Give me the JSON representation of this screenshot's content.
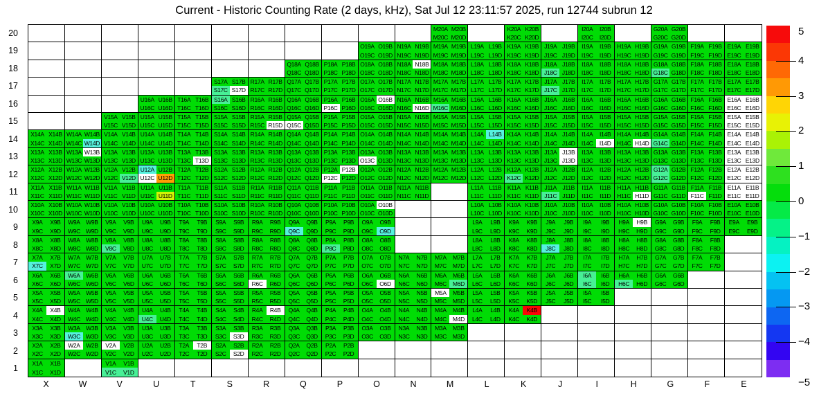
{
  "title": "Current - Historic Counting Rate (2 days, kHz), Sat Jul 12 23:11:57 2025, run 12744 subrun 12",
  "palette": {
    "green": "#00dc05",
    "mint": "#47f096",
    "cyan": "#55f2de",
    "yellow": "#d3f205",
    "orange": "#ff9e05",
    "red": "#fa0505",
    "white": "#ffffff"
  },
  "colorbar": {
    "tick_labels": [
      "5",
      "4",
      "3",
      "2",
      "1",
      "0",
      "−1",
      "−2",
      "−3",
      "−4",
      "−5"
    ],
    "tick_values": [
      5,
      4,
      3,
      2,
      1,
      0,
      -1,
      -2,
      -3,
      -4,
      -5
    ],
    "band_colors": [
      "#f70b0b",
      "#fb3705",
      "#ff6905",
      "#ff9905",
      "#ffd505",
      "#e8f205",
      "#aaf205",
      "#6fe93b",
      "#2ee01f",
      "#05dd0c",
      "#05ea47",
      "#05f287",
      "#05f2c2",
      "#0cf2f2",
      "#05c2f2",
      "#0598f2",
      "#0d66f2",
      "#1437f2",
      "#3305f2",
      "#7d2df2"
    ]
  },
  "chart_data": {
    "type": "heatmap",
    "title": "Current - Historic Counting Rate (2 days, kHz), Sat Jul 12 23:11:57 2025, run 12744 subrun 12",
    "x_categories": "XWVUTSRQPONMLKJIHGFE",
    "y_categories": [
      20,
      19,
      18,
      17,
      16,
      15,
      14,
      13,
      12,
      11,
      10,
      9,
      8,
      7,
      6,
      5,
      4,
      3,
      2,
      1
    ],
    "zlim": [
      -5,
      5
    ],
    "legend_position": "right-colorbar",
    "grid": "on",
    "cell_naming": "Each populated module cell contains four bins labeled <Col><Row>A, B (top) and C, D (bottom)",
    "rows": [
      {
        "row": 20,
        "cols": "MKIG"
      },
      {
        "row": 19,
        "cols": "ONMLKJIHGFE"
      },
      {
        "row": 18,
        "cols": "QPONMLKJIHGFE"
      },
      {
        "row": 17,
        "cols": "SRQPONMLKJIHGFE"
      },
      {
        "row": 16,
        "cols": "UTSRQPONMLKJIHGFE"
      },
      {
        "row": 15,
        "cols": "VUTSRQPONMLKJIHGFE"
      },
      {
        "row": 14,
        "cols": "XWVUTSRQPONMLKJIHGFE"
      },
      {
        "row": 13,
        "cols": "XWVUTSRQPONMLKJIHGFE"
      },
      {
        "row": 12,
        "cols": "XWVUTSRQPONMLKJIHGFE"
      },
      {
        "row": 11,
        "cols": "XWVUTSRQPONLKJIHGFE"
      },
      {
        "row": 10,
        "cols": "XWVUTSRQPOLKJIHGFE"
      },
      {
        "row": 9,
        "cols": "XWVUTSRQPOLKJIHGFE"
      },
      {
        "row": 8,
        "cols": "XWVUTSRQPOLKJIHGF"
      },
      {
        "row": 7,
        "cols": "XWVUTSRQPONMLKJIHGF"
      },
      {
        "row": 6,
        "cols": "XWVUTSRQPONMLKJIHG"
      },
      {
        "row": 5,
        "cols": "XWVUTSRQPONMLKJI"
      },
      {
        "row": 4,
        "cols": "XWVUTSRQPONMLK"
      },
      {
        "row": 3,
        "cols": "XWVUTSRQPONM"
      },
      {
        "row": 2,
        "cols": "XWVUTSRQP"
      },
      {
        "row": 1,
        "cols": "XV"
      }
    ],
    "default_cell_color": "green",
    "approx_value_by_color": {
      "green": 0.5,
      "mint": -0.7,
      "cyan": -1.8,
      "yellow": 2.2,
      "orange": 3.5,
      "red": 5,
      "white": 0
    },
    "cell_color_overrides": {
      "N18B": "white",
      "J18C": "mint",
      "G18C": "mint",
      "S17C": "mint",
      "S17D": "white",
      "J17C": "mint",
      "S16A": "mint",
      "P16C": "white",
      "O16B": "white",
      "N16D": "white",
      "M16C": "mint",
      "E16A": "white",
      "E16B": "white",
      "E16C": "white",
      "E16D": "white",
      "R15D": "white",
      "Q15C": "white",
      "E15A": "white",
      "E15B": "white",
      "E15C": "white",
      "E15D": "white",
      "W14D": "cyan",
      "L14B": "cyan",
      "I14D": "white",
      "H14D": "white",
      "G14C": "mint",
      "E14A": "white",
      "E14B": "white",
      "E14C": "white",
      "E14D": "white",
      "W13B": "white",
      "T13D": "white",
      "O13C": "white",
      "J13B": "white",
      "J13D": "white",
      "E13A": "white",
      "E13B": "white",
      "E13C": "white",
      "E13D": "white",
      "U12A": "cyan",
      "U12C": "white",
      "U12D": "orange",
      "V12D": "mint",
      "P12B": "white",
      "P12C": "white",
      "K12C": "mint",
      "G12A": "mint",
      "G12C": "mint",
      "E12A": "white",
      "E12B": "white",
      "E12C": "white",
      "E12D": "white",
      "U11D": "yellow",
      "J11C": "mint",
      "H11D": "white",
      "F11C": "white",
      "E11A": "white",
      "E11B": "white",
      "E11C": "white",
      "E11D": "white",
      "O10B": "white",
      "Q9C": "cyan",
      "O9D": "cyan",
      "H9B": "white",
      "P8C": "mint",
      "V8C": "mint",
      "J8C": "cyan",
      "X7C": "cyan",
      "W6A": "mint",
      "R6C": "white",
      "O6D": "white",
      "M6D": "mint",
      "I6A": "mint",
      "I6C": "mint",
      "H6C": "mint",
      "M5A": "white",
      "X4B": "white",
      "U4C": "mint",
      "R4B": "white",
      "M4D": "white",
      "K4B": "red",
      "W3C": "cyan",
      "S3D": "white",
      "W2A": "white",
      "V2A": "white",
      "T2B": "white",
      "S2D": "white",
      "V1C": "mint",
      "V1D": "mint"
    }
  }
}
